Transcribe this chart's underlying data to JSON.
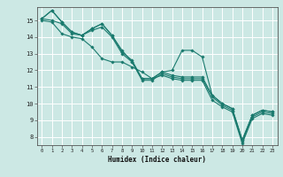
{
  "xlabel": "Humidex (Indice chaleur)",
  "ylabel": "",
  "bg_color": "#cce8e4",
  "grid_color": "#ffffff",
  "line_color": "#1a7a6e",
  "xlim": [
    -0.5,
    23.5
  ],
  "ylim": [
    7.5,
    15.8
  ],
  "xticks": [
    0,
    1,
    2,
    3,
    4,
    5,
    6,
    7,
    8,
    9,
    10,
    11,
    12,
    13,
    14,
    15,
    16,
    17,
    18,
    19,
    20,
    21,
    22,
    23
  ],
  "yticks": [
    8,
    9,
    10,
    11,
    12,
    13,
    14,
    15
  ],
  "series": [
    [
      15.1,
      15.6,
      14.9,
      14.3,
      14.1,
      14.5,
      14.8,
      14.1,
      13.1,
      12.6,
      11.5,
      11.5,
      11.9,
      12.0,
      13.2,
      13.2,
      12.8,
      10.5,
      10.0,
      9.7,
      7.8,
      9.3,
      9.6,
      9.5
    ],
    [
      15.1,
      15.6,
      14.9,
      14.3,
      14.1,
      14.5,
      14.8,
      14.1,
      13.2,
      12.5,
      11.5,
      11.5,
      11.9,
      11.7,
      11.6,
      11.6,
      11.6,
      10.5,
      10.0,
      9.7,
      7.8,
      9.3,
      9.6,
      9.5
    ],
    [
      15.1,
      15.0,
      14.8,
      14.2,
      14.1,
      14.4,
      14.6,
      14.0,
      13.0,
      12.5,
      11.4,
      11.4,
      11.8,
      11.6,
      11.5,
      11.5,
      11.5,
      10.4,
      9.9,
      9.6,
      7.7,
      9.2,
      9.5,
      9.4
    ],
    [
      15.0,
      14.9,
      14.2,
      14.0,
      13.9,
      13.4,
      12.7,
      12.5,
      12.5,
      12.2,
      11.9,
      11.5,
      11.7,
      11.5,
      11.4,
      11.4,
      11.4,
      10.2,
      9.8,
      9.5,
      7.6,
      9.1,
      9.4,
      9.3
    ]
  ]
}
